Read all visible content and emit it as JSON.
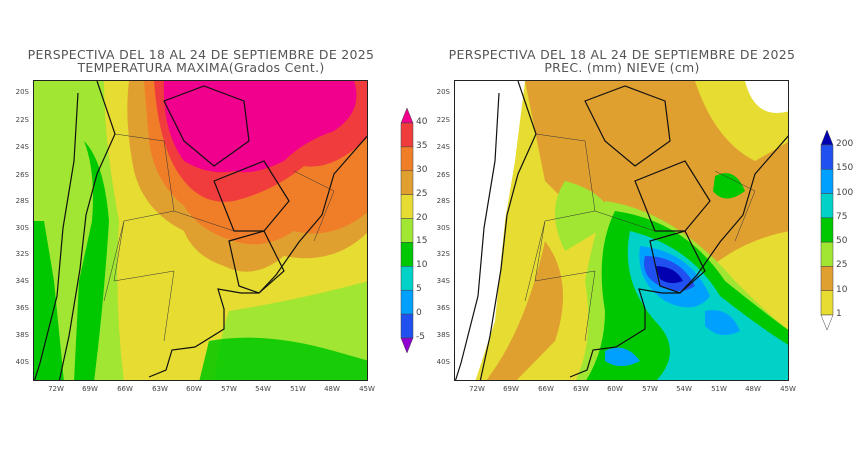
{
  "left_map": {
    "title_line1": "PERSPECTIVA DEL 18 AL 24 DE SEPTIEMBRE DE 2025",
    "title_line2": "TEMPERATURA MAXIMA(Grados Cent.)",
    "colorbar": {
      "labels": [
        "40",
        "35",
        "30",
        "25",
        "20",
        "15",
        "10",
        "5",
        "0",
        "-5"
      ],
      "colors": [
        "#f0008c",
        "#f03c3c",
        "#f07e28",
        "#e0a030",
        "#e6dc32",
        "#a0e632",
        "#00c800",
        "#00d2c8",
        "#00a0ff",
        "#2050f0",
        "#9000d0"
      ]
    }
  },
  "right_map": {
    "title_line1": "PERSPECTIVA DEL 18 AL 24 DE SEPTIEMBRE DE 2025",
    "title_line2": "PREC. (mm) NIEVE (cm)",
    "colorbar": {
      "labels": [
        "200",
        "150",
        "100",
        "75",
        "50",
        "25",
        "10",
        "1"
      ],
      "colors": [
        "#0000b0",
        "#2050f0",
        "#00a0ff",
        "#00d2c8",
        "#00c800",
        "#a0e632",
        "#e0a030",
        "#e6dc32",
        "#ffffff"
      ]
    }
  },
  "axes": {
    "lat_ticks": [
      "20S",
      "22S",
      "24S",
      "26S",
      "28S",
      "30S",
      "32S",
      "34S",
      "36S",
      "38S",
      "40S"
    ],
    "lon_ticks": [
      "72W",
      "69W",
      "66W",
      "63W",
      "60W",
      "57W",
      "54W",
      "51W",
      "48W",
      "45W"
    ]
  }
}
